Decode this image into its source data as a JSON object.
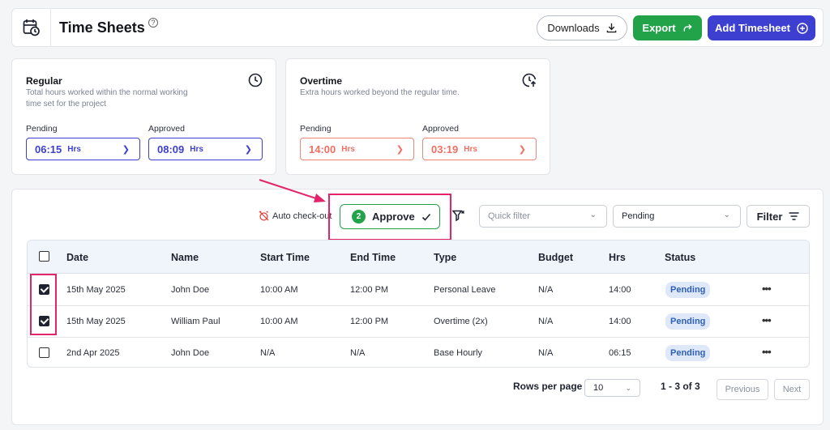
{
  "header": {
    "title": "Time Sheets",
    "help": "?",
    "downloads_label": "Downloads",
    "export_label": "Export",
    "add_label": "Add Timesheet"
  },
  "cards": {
    "regular": {
      "title": "Regular",
      "desc": "Total hours worked within the normal working time set for the project",
      "pending_label": "Pending",
      "approved_label": "Approved",
      "pending_value": "06:15",
      "approved_value": "08:09",
      "unit": "Hrs"
    },
    "overtime": {
      "title": "Overtime",
      "desc": "Extra hours worked beyond the regular time.",
      "pending_label": "Pending",
      "approved_label": "Approved",
      "pending_value": "14:00",
      "approved_value": "03:19",
      "unit": "Hrs"
    }
  },
  "toolbar": {
    "auto_checkout": "Auto check-out",
    "approve_count": "2",
    "approve_label": "Approve",
    "quick_filter_placeholder": "Quick filter",
    "status_filter": "Pending",
    "filter_label": "Filter"
  },
  "table": {
    "headers": [
      "Date",
      "Name",
      "Start Time",
      "End Time",
      "Type",
      "Budget",
      "Hrs",
      "Status"
    ],
    "rows": [
      {
        "date": "15th May 2025",
        "name": "John Doe",
        "start": "10:00 AM",
        "end": "12:00 PM",
        "type": "Personal Leave",
        "budget": "N/A",
        "hrs": "14:00",
        "status": "Pending",
        "checked": true
      },
      {
        "date": "15th May 2025",
        "name": "William Paul",
        "start": "10:00 AM",
        "end": "12:00 PM",
        "type": "Overtime (2x)",
        "budget": "N/A",
        "hrs": "14:00",
        "status": "Pending",
        "checked": true
      },
      {
        "date": "2nd Apr 2025",
        "name": "John Doe",
        "start": "N/A",
        "end": "N/A",
        "type": "Base Hourly",
        "budget": "N/A",
        "hrs": "06:15",
        "status": "Pending",
        "checked": false
      }
    ]
  },
  "pagination": {
    "rows_per_page_label": "Rows per page",
    "rows_per_page": "10",
    "range": "1 - 3 of 3",
    "previous": "Previous",
    "next": "Next"
  },
  "colors": {
    "primary": "#3d3fd0",
    "success": "#22a34a",
    "overtime": "#ef6f62",
    "highlight": "#e3246a"
  }
}
